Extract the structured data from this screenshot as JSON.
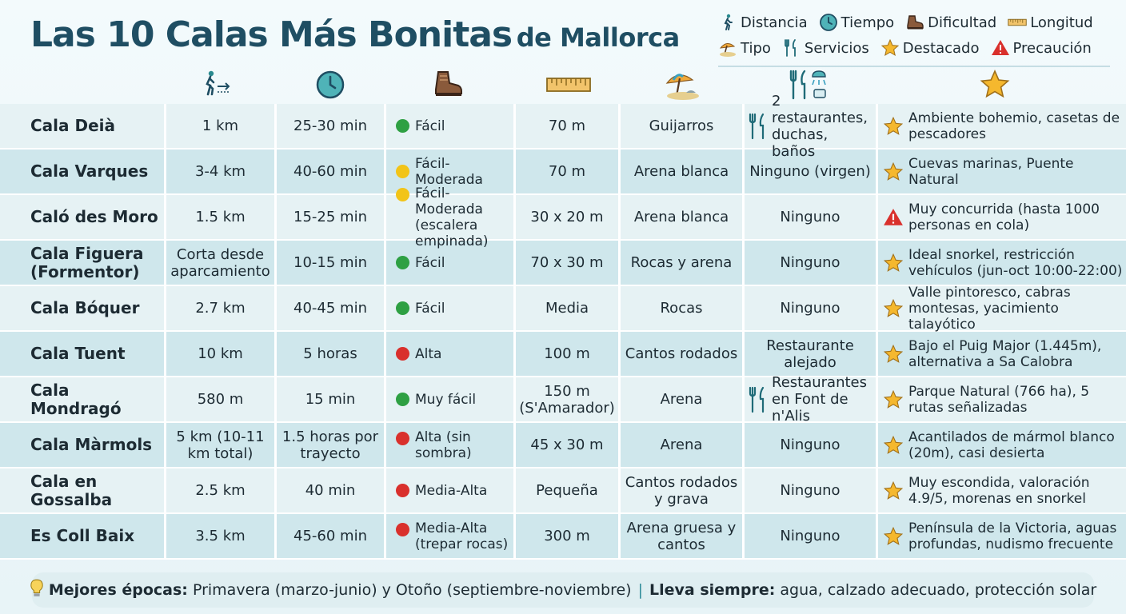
{
  "header": {
    "title_main": "Las 10 Calas Más Bonitas",
    "title_sub": "de Mallorca"
  },
  "legend": {
    "items": [
      {
        "icon": "walking-person-icon",
        "label": "Distancia"
      },
      {
        "icon": "clock-icon",
        "label": "Tiempo"
      },
      {
        "icon": "hiking-boot-icon",
        "label": "Dificultad"
      },
      {
        "icon": "ruler-icon",
        "label": "Longitud"
      },
      {
        "icon": "beach-umbrella-icon",
        "label": "Tipo"
      },
      {
        "icon": "fork-knife-icon",
        "label": "Servicios"
      },
      {
        "icon": "star-icon",
        "label": "Destacado"
      },
      {
        "icon": "warning-icon",
        "label": "Precaución"
      }
    ]
  },
  "colors": {
    "green": "#2ea043",
    "yellow": "#f2c418",
    "red": "#d9302c",
    "star": "#f5b82e",
    "title": "#1f4e63"
  },
  "rows": [
    {
      "name": "Cala Deià",
      "dist": "1 km",
      "time": "25-30 min",
      "diff_color": "green",
      "diff": "Fácil",
      "len": "70 m",
      "type": "Guijarros",
      "serv": "2 restaurantes, duchas, baños",
      "serv_icon": true,
      "high_icon": "star",
      "high": "Ambiente bohemio, casetas de pescadores"
    },
    {
      "name": "Cala Varques",
      "dist": "3-4 km",
      "time": "40-60 min",
      "diff_color": "yellow",
      "diff": "Fácil-Moderada",
      "len": "70 m",
      "type": "Arena blanca",
      "serv": "Ninguno (virgen)",
      "serv_icon": false,
      "high_icon": "star",
      "high": "Cuevas marinas, Puente Natural"
    },
    {
      "name": "Caló des Moro",
      "dist": "1.5 km",
      "time": "15-25 min",
      "diff_color": "yellow",
      "diff": "Fácil-Moderada (escalera empinada)",
      "len": "30 x 20 m",
      "type": "Arena blanca",
      "serv": "Ninguno",
      "serv_icon": false,
      "high_icon": "warning",
      "high": "Muy concurrida (hasta 1000 personas en cola)"
    },
    {
      "name": "Cala Figuera (Formentor)",
      "dist": "Corta desde aparcamiento",
      "time": "10-15 min",
      "diff_color": "green",
      "diff": "Fácil",
      "len": "70 x 30 m",
      "type": "Rocas y arena",
      "serv": "Ninguno",
      "serv_icon": false,
      "high_icon": "star",
      "high": "Ideal snorkel, restricción vehículos (jun-oct 10:00-22:00)"
    },
    {
      "name": "Cala Bóquer",
      "dist": "2.7 km",
      "time": "40-45 min",
      "diff_color": "green",
      "diff": "Fácil",
      "len": "Media",
      "type": "Rocas",
      "serv": "Ninguno",
      "serv_icon": false,
      "high_icon": "star",
      "high": "Valle pintoresco, cabras montesas, yacimiento talayótico"
    },
    {
      "name": "Cala Tuent",
      "dist": "10 km",
      "time": "5 horas",
      "diff_color": "red",
      "diff": "Alta",
      "len": "100 m",
      "type": "Cantos rodados",
      "serv": "Restaurante alejado",
      "serv_icon": false,
      "high_icon": "star",
      "high": "Bajo el Puig Major (1.445m), alternativa a Sa Calobra"
    },
    {
      "name": "Cala Mondragó",
      "dist": "580 m",
      "time": "15 min",
      "diff_color": "green",
      "diff": "Muy fácil",
      "len": "150 m (S'Amarador)",
      "type": "Arena",
      "serv": "Restaurantes en Font de n'Alis",
      "serv_icon": true,
      "high_icon": "star",
      "high": "Parque Natural (766 ha), 5 rutas señalizadas"
    },
    {
      "name": "Cala Màrmols",
      "dist": "5 km (10-11 km total)",
      "time": "1.5 horas por trayecto",
      "diff_color": "red",
      "diff": "Alta (sin sombra)",
      "len": "45 x 30 m",
      "type": "Arena",
      "serv": "Ninguno",
      "serv_icon": false,
      "high_icon": "star",
      "high": "Acantilados de mármol blanco (20m), casi desierta"
    },
    {
      "name": "Cala en Gossalba",
      "dist": "2.5 km",
      "time": "40 min",
      "diff_color": "red",
      "diff": "Media-Alta",
      "len": "Pequeña",
      "type": "Cantos rodados y grava",
      "serv": "Ninguno",
      "serv_icon": false,
      "high_icon": "star",
      "high": "Muy escondida, valoración 4.9/5, morenas en snorkel"
    },
    {
      "name": "Es Coll Baix",
      "dist": "3.5 km",
      "time": "45-60 min",
      "diff_color": "red",
      "diff": "Media-Alta (trepar rocas)",
      "len": "300 m",
      "type": "Arena gruesa y cantos",
      "serv": "Ninguno",
      "serv_icon": false,
      "high_icon": "star",
      "high": "Península de la Victoria, aguas profundas, nudismo frecuente"
    }
  ],
  "footer": {
    "label1": "Mejores épocas:",
    "text1": "Primavera (marzo-junio) y Otoño (septiembre-noviembre)",
    "sep": "|",
    "label2": "Lleva siempre:",
    "text2": "agua, calzado adecuado, protección solar"
  }
}
